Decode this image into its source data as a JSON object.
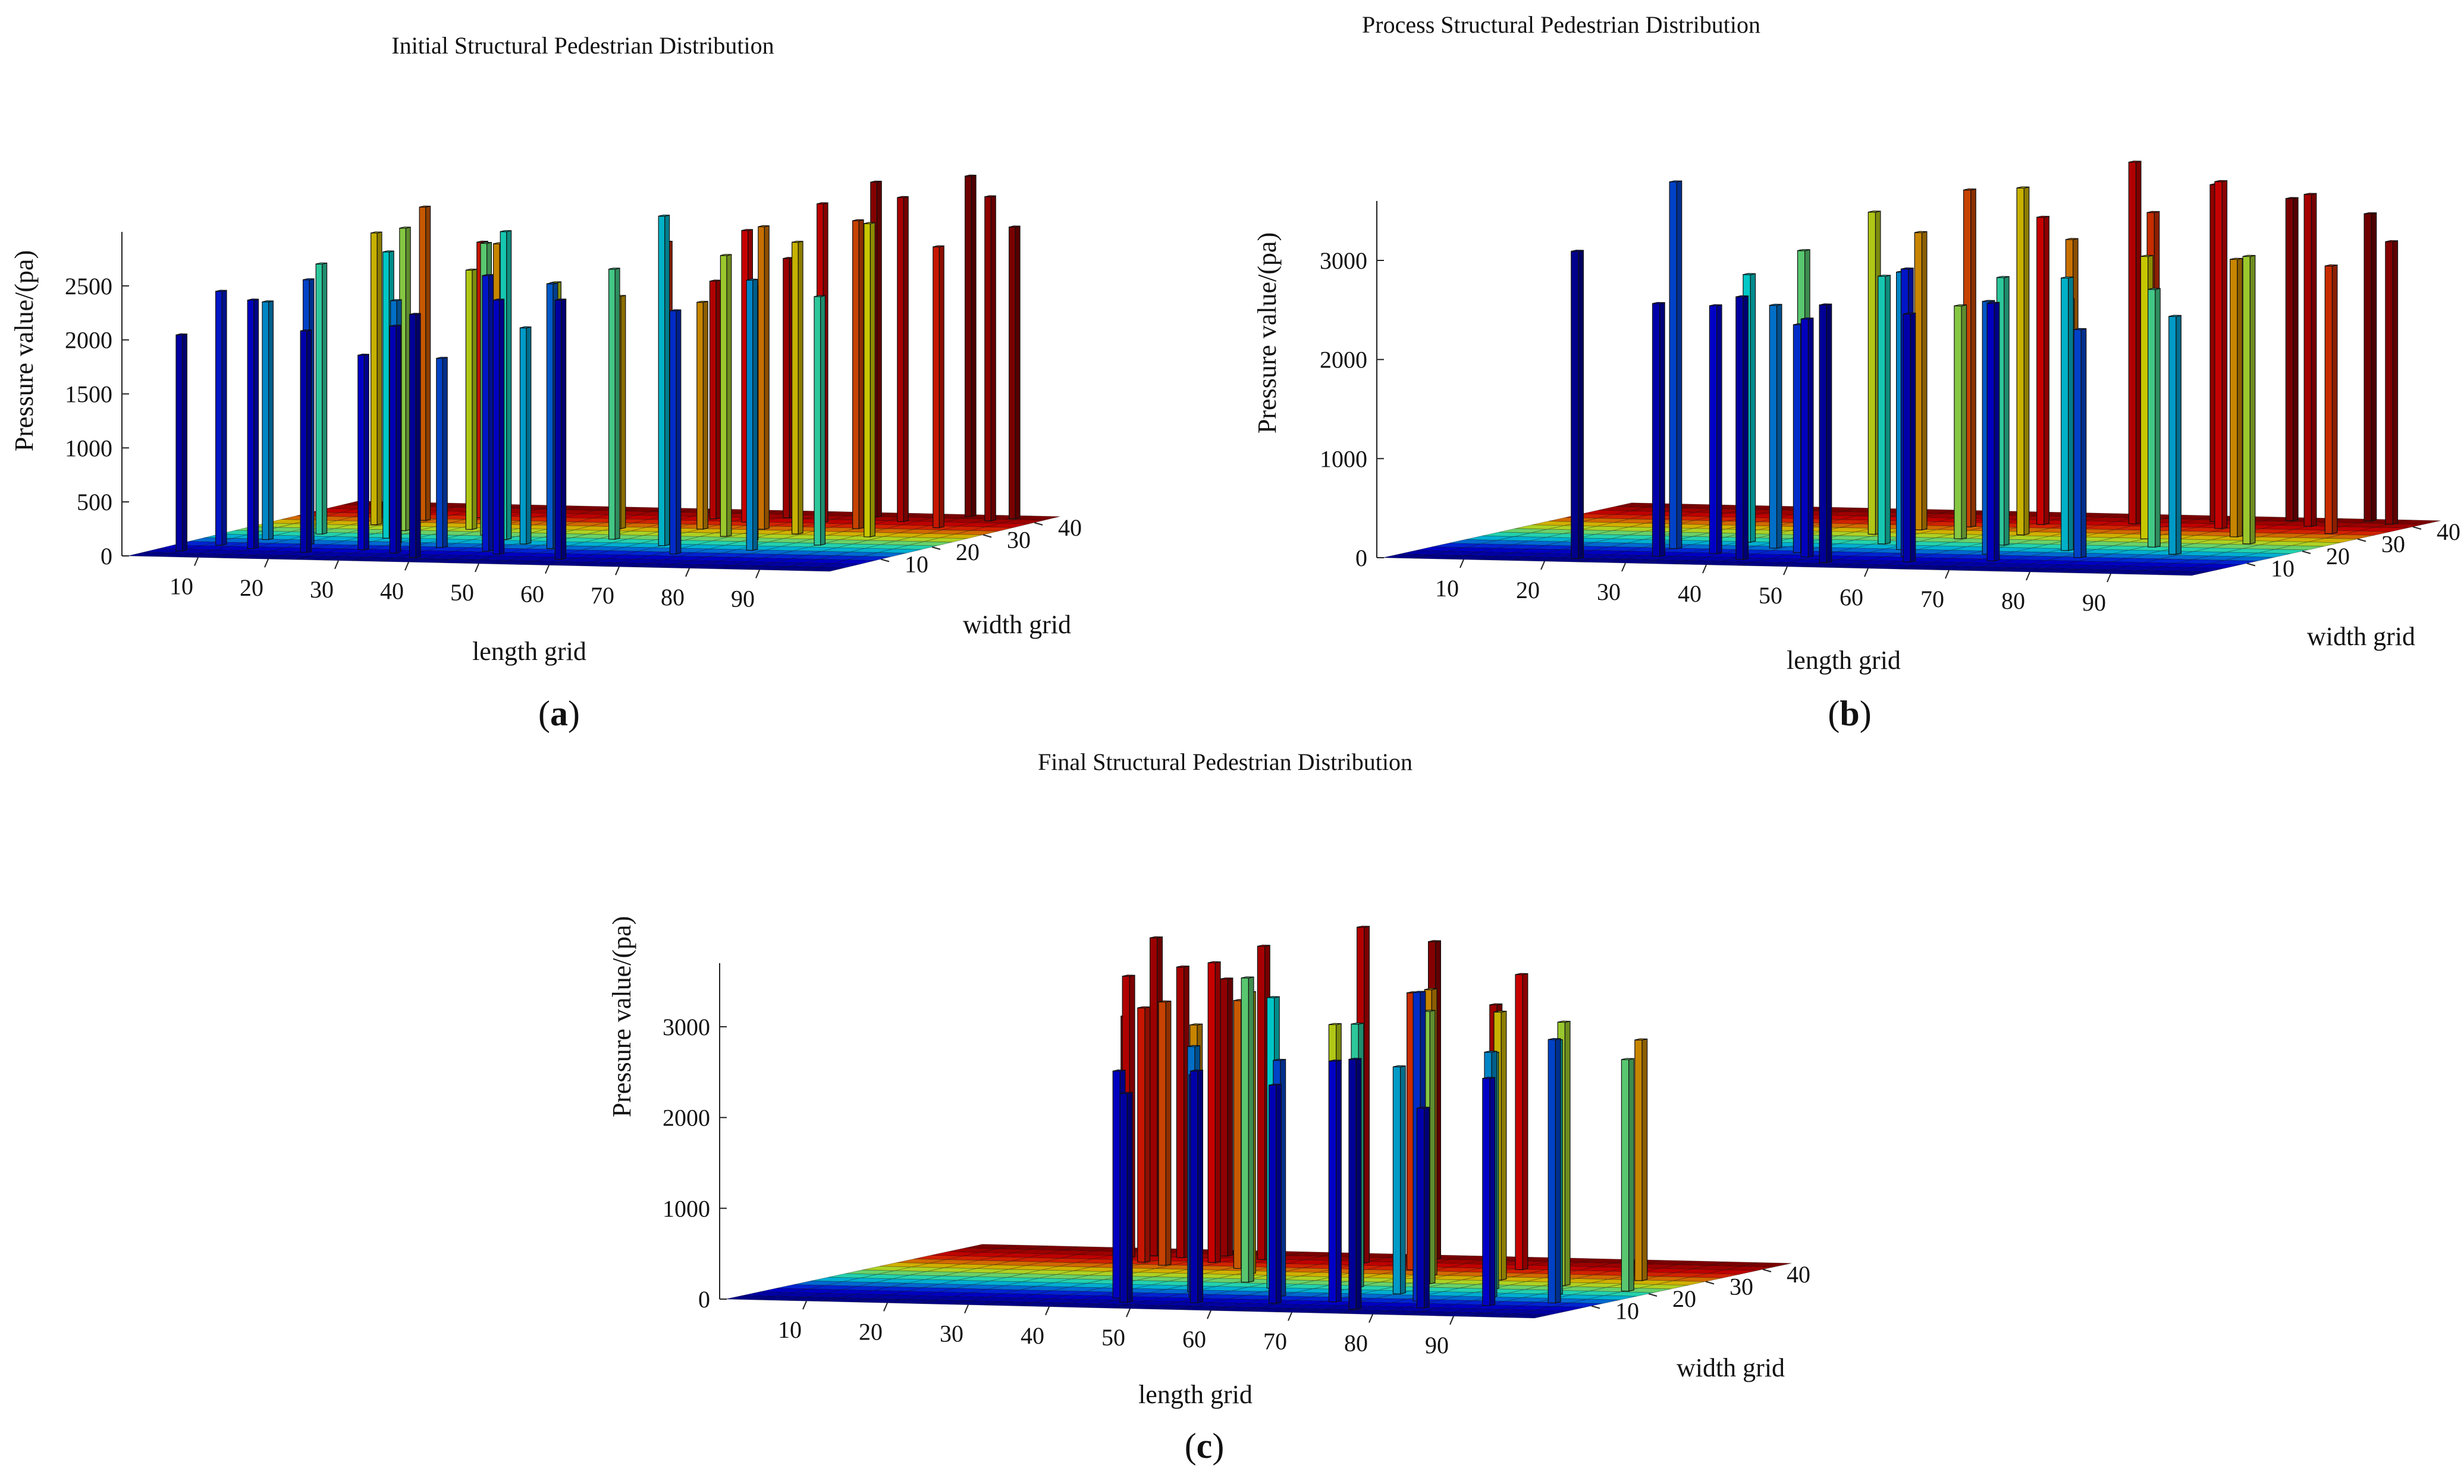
{
  "colors": {
    "colormap": "jet",
    "jet_stops": [
      "#00008f",
      "#0000ff",
      "#00ffff",
      "#ffff00",
      "#ff0000",
      "#800000"
    ]
  },
  "chart_data": [
    {
      "type": "bar3d",
      "caption_letter": "a",
      "title": "Initial Structural Pedestrian Distribution",
      "xlabel": "length grid",
      "ylabel": "width grid",
      "zlabel": "Pressure value/(pa)",
      "xlim": [
        0,
        100
      ],
      "ylim": [
        0,
        45
      ],
      "zlim": [
        0,
        3000
      ],
      "xticks": [
        10,
        20,
        30,
        40,
        50,
        60,
        70,
        80,
        90
      ],
      "yticks": [
        10,
        20,
        30,
        40
      ],
      "zticks": [
        0,
        500,
        1000,
        1500,
        2000,
        2500
      ],
      "bars": [
        {
          "x": 4,
          "y": 5,
          "z": 2000
        },
        {
          "x": 6,
          "y": 10,
          "z": 2350
        },
        {
          "x": 9,
          "y": 15,
          "z": 2200
        },
        {
          "x": 12,
          "y": 8,
          "z": 2300
        },
        {
          "x": 13,
          "y": 20,
          "z": 2500
        },
        {
          "x": 15,
          "y": 28,
          "z": 2700
        },
        {
          "x": 17,
          "y": 12,
          "z": 2450
        },
        {
          "x": 19,
          "y": 32,
          "z": 2900
        },
        {
          "x": 21,
          "y": 6,
          "z": 2050
        },
        {
          "x": 22,
          "y": 24,
          "z": 2800
        },
        {
          "x": 24,
          "y": 18,
          "z": 2650
        },
        {
          "x": 25,
          "y": 35,
          "z": 2550
        },
        {
          "x": 27,
          "y": 9,
          "z": 1800
        },
        {
          "x": 28,
          "y": 14,
          "z": 2250
        },
        {
          "x": 30,
          "y": 26,
          "z": 2400
        },
        {
          "x": 31,
          "y": 30,
          "z": 2600
        },
        {
          "x": 33,
          "y": 7,
          "z": 2100
        },
        {
          "x": 35,
          "y": 22,
          "z": 2700
        },
        {
          "x": 36,
          "y": 12,
          "z": 1750
        },
        {
          "x": 38,
          "y": 4,
          "z": 2250
        },
        {
          "x": 40,
          "y": 19,
          "z": 2850
        },
        {
          "x": 42,
          "y": 26,
          "z": 2300
        },
        {
          "x": 44,
          "y": 10,
          "z": 2550
        },
        {
          "x": 45,
          "y": 16,
          "z": 2000
        },
        {
          "x": 47,
          "y": 8,
          "z": 2350
        },
        {
          "x": 49,
          "y": 29,
          "z": 2150
        },
        {
          "x": 51,
          "y": 13,
          "z": 2450
        },
        {
          "x": 52,
          "y": 34,
          "z": 2600
        },
        {
          "x": 54,
          "y": 21,
          "z": 2500
        },
        {
          "x": 56,
          "y": 38,
          "z": 2200
        },
        {
          "x": 58,
          "y": 5,
          "z": 2400
        },
        {
          "x": 60,
          "y": 30,
          "z": 2100
        },
        {
          "x": 62,
          "y": 36,
          "z": 2700
        },
        {
          "x": 64,
          "y": 17,
          "z": 3050
        },
        {
          "x": 65,
          "y": 40,
          "z": 2400
        },
        {
          "x": 67,
          "y": 25,
          "z": 2600
        },
        {
          "x": 68,
          "y": 31,
          "z": 2800
        },
        {
          "x": 70,
          "y": 11,
          "z": 2250
        },
        {
          "x": 72,
          "y": 37,
          "z": 2950
        },
        {
          "x": 73,
          "y": 22,
          "z": 2350
        },
        {
          "x": 75,
          "y": 28,
          "z": 2700
        },
        {
          "x": 76,
          "y": 42,
          "z": 3100
        },
        {
          "x": 78,
          "y": 15,
          "z": 2500
        },
        {
          "x": 80,
          "y": 33,
          "z": 2850
        },
        {
          "x": 82,
          "y": 39,
          "z": 3000
        },
        {
          "x": 84,
          "y": 20,
          "z": 2300
        },
        {
          "x": 86,
          "y": 27,
          "z": 2900
        },
        {
          "x": 88,
          "y": 44,
          "z": 3150
        },
        {
          "x": 90,
          "y": 35,
          "z": 2600
        },
        {
          "x": 93,
          "y": 41,
          "z": 3000
        },
        {
          "x": 95,
          "y": 43,
          "z": 2700
        }
      ]
    },
    {
      "type": "bar3d",
      "caption_letter": "b",
      "title": "Process Structural Pedestrian Distribution",
      "xlabel": "length grid",
      "ylabel": "width grid",
      "zlabel": "Pressure value/(pa)",
      "xlim": [
        0,
        100
      ],
      "ylim": [
        0,
        45
      ],
      "zlim": [
        0,
        3600
      ],
      "xticks": [
        10,
        20,
        30,
        40,
        50,
        60,
        70,
        80,
        90
      ],
      "yticks": [
        10,
        20,
        30,
        40
      ],
      "zticks": [
        0,
        1000,
        2000,
        3000
      ],
      "bars": [
        {
          "x": 22,
          "y": 3,
          "z": 3100
        },
        {
          "x": 28,
          "y": 12,
          "z": 3700
        },
        {
          "x": 30,
          "y": 6,
          "z": 2550
        },
        {
          "x": 33,
          "y": 18,
          "z": 2700
        },
        {
          "x": 35,
          "y": 9,
          "z": 2500
        },
        {
          "x": 37,
          "y": 22,
          "z": 2900
        },
        {
          "x": 39,
          "y": 14,
          "z": 2450
        },
        {
          "x": 41,
          "y": 5,
          "z": 2650
        },
        {
          "x": 43,
          "y": 26,
          "z": 3250
        },
        {
          "x": 44,
          "y": 11,
          "z": 2300
        },
        {
          "x": 46,
          "y": 30,
          "z": 3000
        },
        {
          "x": 47,
          "y": 8,
          "z": 2400
        },
        {
          "x": 49,
          "y": 19,
          "z": 2700
        },
        {
          "x": 50,
          "y": 33,
          "z": 3400
        },
        {
          "x": 52,
          "y": 4,
          "z": 2600
        },
        {
          "x": 54,
          "y": 15,
          "z": 2800
        },
        {
          "x": 55,
          "y": 24,
          "z": 2350
        },
        {
          "x": 57,
          "y": 36,
          "z": 3100
        },
        {
          "x": 58,
          "y": 10,
          "z": 2900
        },
        {
          "x": 60,
          "y": 28,
          "z": 3500
        },
        {
          "x": 61,
          "y": 6,
          "z": 2500
        },
        {
          "x": 63,
          "y": 20,
          "z": 2700
        },
        {
          "x": 64,
          "y": 31,
          "z": 2950
        },
        {
          "x": 66,
          "y": 13,
          "z": 2550
        },
        {
          "x": 67,
          "y": 38,
          "z": 3650
        },
        {
          "x": 69,
          "y": 23,
          "z": 2450
        },
        {
          "x": 70,
          "y": 8,
          "z": 2600
        },
        {
          "x": 72,
          "y": 34,
          "z": 3200
        },
        {
          "x": 73,
          "y": 17,
          "z": 2750
        },
        {
          "x": 75,
          "y": 41,
          "z": 3400
        },
        {
          "x": 76,
          "y": 27,
          "z": 2850
        },
        {
          "x": 78,
          "y": 12,
          "z": 2300
        },
        {
          "x": 79,
          "y": 36,
          "z": 3500
        },
        {
          "x": 81,
          "y": 21,
          "z": 2600
        },
        {
          "x": 83,
          "y": 43,
          "z": 3250
        },
        {
          "x": 85,
          "y": 30,
          "z": 2800
        },
        {
          "x": 87,
          "y": 16,
          "z": 2400
        },
        {
          "x": 88,
          "y": 39,
          "z": 3350
        },
        {
          "x": 90,
          "y": 25,
          "z": 2900
        },
        {
          "x": 92,
          "y": 44,
          "z": 3100
        },
        {
          "x": 94,
          "y": 34,
          "z": 2700
        },
        {
          "x": 96,
          "y": 42,
          "z": 2850
        }
      ]
    },
    {
      "type": "bar3d",
      "caption_letter": "c",
      "title": "Final Structural Pedestrian Distribution",
      "xlabel": "length grid",
      "ylabel": "width grid",
      "zlabel": "Pressure value/(pa)",
      "xlim": [
        0,
        100
      ],
      "ylim": [
        0,
        45
      ],
      "zlim": [
        0,
        3700
      ],
      "xticks": [
        10,
        20,
        30,
        40,
        50,
        60,
        70,
        80,
        90
      ],
      "yticks": [
        10,
        20,
        30,
        40
      ],
      "zticks": [
        0,
        1000,
        2000,
        3000
      ],
      "bars": [
        {
          "x": 20,
          "y": 42,
          "z": 2600
        },
        {
          "x": 23,
          "y": 38,
          "z": 3100
        },
        {
          "x": 25,
          "y": 40,
          "z": 3500
        },
        {
          "x": 27,
          "y": 35,
          "z": 2800
        },
        {
          "x": 29,
          "y": 39,
          "z": 3200
        },
        {
          "x": 31,
          "y": 33,
          "z": 2900
        },
        {
          "x": 33,
          "y": 41,
          "z": 3050
        },
        {
          "x": 35,
          "y": 36,
          "z": 3300
        },
        {
          "x": 37,
          "y": 30,
          "z": 2700
        },
        {
          "x": 39,
          "y": 39,
          "z": 3450
        },
        {
          "x": 41,
          "y": 32,
          "z": 2950
        },
        {
          "x": 43,
          "y": 8,
          "z": 2500
        },
        {
          "x": 45,
          "y": 28,
          "z": 3100
        },
        {
          "x": 46,
          "y": 5,
          "z": 2300
        },
        {
          "x": 48,
          "y": 14,
          "z": 2700
        },
        {
          "x": 49,
          "y": 22,
          "z": 3350
        },
        {
          "x": 51,
          "y": 10,
          "z": 2450
        },
        {
          "x": 52,
          "y": 38,
          "z": 3700
        },
        {
          "x": 54,
          "y": 6,
          "z": 2550
        },
        {
          "x": 55,
          "y": 18,
          "z": 3200
        },
        {
          "x": 57,
          "y": 26,
          "z": 2800
        },
        {
          "x": 58,
          "y": 42,
          "z": 3500
        },
        {
          "x": 60,
          "y": 12,
          "z": 2600
        },
        {
          "x": 61,
          "y": 34,
          "z": 3050
        },
        {
          "x": 63,
          "y": 7,
          "z": 2400
        },
        {
          "x": 64,
          "y": 20,
          "z": 2900
        },
        {
          "x": 66,
          "y": 30,
          "z": 3150
        },
        {
          "x": 67,
          "y": 40,
          "z": 2850
        },
        {
          "x": 69,
          "y": 9,
          "z": 2650
        },
        {
          "x": 70,
          "y": 24,
          "z": 3000
        },
        {
          "x": 72,
          "y": 16,
          "z": 2500
        },
        {
          "x": 73,
          "y": 36,
          "z": 3250
        },
        {
          "x": 75,
          "y": 4,
          "z": 2750
        },
        {
          "x": 76,
          "y": 28,
          "z": 2950
        },
        {
          "x": 78,
          "y": 11,
          "z": 3400
        },
        {
          "x": 80,
          "y": 21,
          "z": 2600
        },
        {
          "x": 82,
          "y": 6,
          "z": 2200
        },
        {
          "x": 84,
          "y": 15,
          "z": 2700
        },
        {
          "x": 86,
          "y": 25,
          "z": 2900
        },
        {
          "x": 88,
          "y": 9,
          "z": 2500
        },
        {
          "x": 90,
          "y": 18,
          "z": 2800
        },
        {
          "x": 92,
          "y": 30,
          "z": 2650
        },
        {
          "x": 94,
          "y": 12,
          "z": 2900
        },
        {
          "x": 96,
          "y": 22,
          "z": 2550
        }
      ]
    }
  ]
}
